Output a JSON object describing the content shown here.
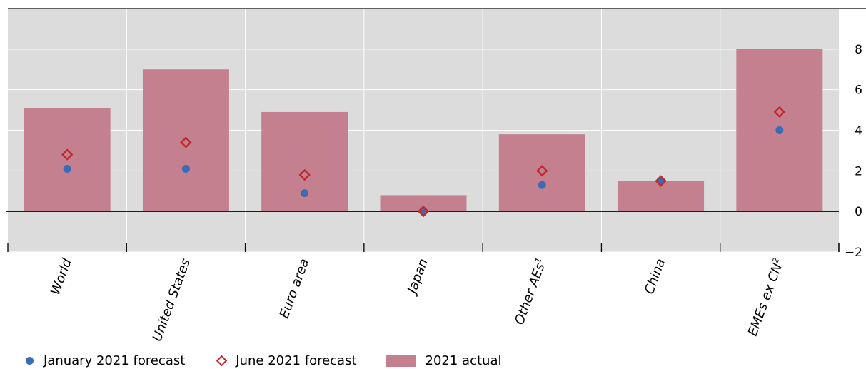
{
  "chart_data": {
    "type": "bar",
    "categories": [
      "World",
      "United States",
      "Euro area",
      "Japan",
      "Other AEs",
      "China",
      "EMEs ex CN"
    ],
    "category_superscripts": [
      "",
      "",
      "",
      "",
      "1",
      "",
      "2"
    ],
    "series": [
      {
        "name": "2021 actual",
        "kind": "bar",
        "color": "#c4808e",
        "values": [
          5.1,
          7.0,
          4.9,
          0.8,
          3.8,
          1.5,
          8.0
        ]
      },
      {
        "name": "January 2021 forecast",
        "kind": "dot",
        "color": "#3a6bb4",
        "values": [
          2.1,
          2.1,
          0.9,
          0.0,
          1.3,
          1.5,
          4.0
        ]
      },
      {
        "name": "June 2021 forecast",
        "kind": "diamond",
        "color": "#c0282d",
        "values": [
          2.8,
          3.4,
          1.8,
          0.0,
          2.0,
          1.5,
          4.9
        ]
      }
    ],
    "ylim": [
      -2,
      10
    ],
    "yticks": [
      -2,
      0,
      2,
      4,
      6,
      8
    ],
    "yaxis_side": "right",
    "grid": true,
    "legend_position": "bottom",
    "background_color": "#dcdcdc"
  },
  "legend": [
    {
      "label": "January 2021 forecast",
      "marker": "dot"
    },
    {
      "label": "June 2021 forecast",
      "marker": "diamond"
    },
    {
      "label": "2021 actual",
      "marker": "bar"
    }
  ]
}
